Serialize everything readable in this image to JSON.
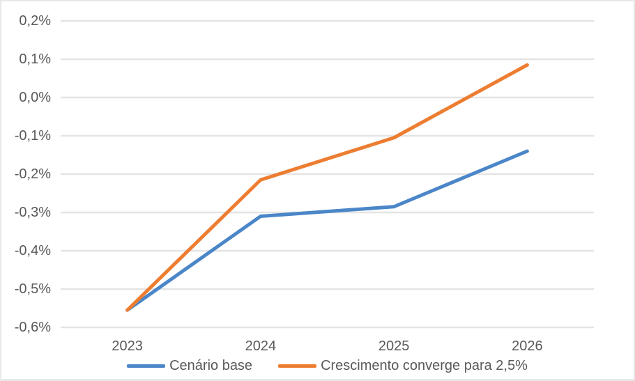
{
  "chart_data": {
    "type": "line",
    "categories": [
      "2023",
      "2024",
      "2025",
      "2026"
    ],
    "series": [
      {
        "name": "Cenário base",
        "color": "#4A86C8",
        "values": [
          -0.555,
          -0.31,
          -0.285,
          -0.14
        ]
      },
      {
        "name": "Crescimento converge para 2,5%",
        "color": "#ED7D31",
        "values": [
          -0.555,
          -0.215,
          -0.105,
          0.085
        ]
      }
    ],
    "xlabel": "",
    "ylabel": "",
    "ylim": [
      -0.6,
      0.2
    ],
    "ytick_step": 0.1,
    "ytick_labels": [
      "0,2%",
      "0,1%",
      "0,0%",
      "-0,1%",
      "-0,2%",
      "-0,3%",
      "-0,4%",
      "-0,5%",
      "-0,6%"
    ],
    "grid": true,
    "legend_position": "bottom",
    "colors": {
      "gridline": "#e4e4e4",
      "axis_text": "#595959",
      "background": "#ffffff",
      "border": "#e8e8e8"
    }
  }
}
